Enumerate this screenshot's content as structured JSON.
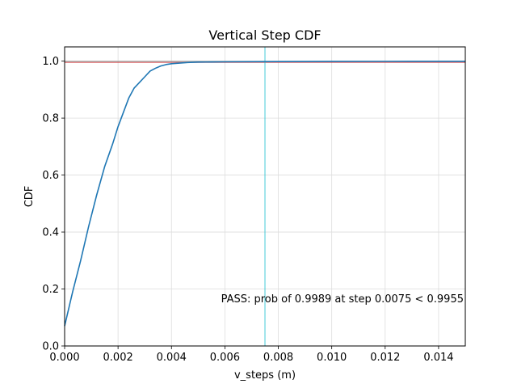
{
  "chart_data": {
    "type": "line",
    "title": "Vertical Step CDF",
    "xlabel": "v_steps (m)",
    "ylabel": "CDF",
    "xlim": [
      0.0,
      0.015
    ],
    "ylim": [
      0.0,
      1.05
    ],
    "xticks": [
      0.0,
      0.002,
      0.004,
      0.006,
      0.008,
      0.01,
      0.012,
      0.014
    ],
    "xtick_labels": [
      "0.000",
      "0.002",
      "0.004",
      "0.006",
      "0.008",
      "0.010",
      "0.012",
      "0.014"
    ],
    "yticks": [
      0.0,
      0.2,
      0.4,
      0.6,
      0.8,
      1.0
    ],
    "ytick_labels": [
      "0.0",
      "0.2",
      "0.4",
      "0.6",
      "0.8",
      "1.0"
    ],
    "grid": true,
    "series": [
      {
        "color": "#1f77b4",
        "x": [
          0.0,
          0.0003,
          0.0006,
          0.0009,
          0.0012,
          0.0015,
          0.0018,
          0.002,
          0.0022,
          0.0024,
          0.0026,
          0.0028,
          0.003,
          0.0032,
          0.0034,
          0.0036,
          0.0038,
          0.004,
          0.0043,
          0.0046,
          0.005,
          0.0055,
          0.006,
          0.007,
          0.008,
          0.01,
          0.012,
          0.015
        ],
        "y": [
          0.07,
          0.19,
          0.3,
          0.42,
          0.53,
          0.63,
          0.71,
          0.77,
          0.82,
          0.87,
          0.905,
          0.925,
          0.945,
          0.965,
          0.975,
          0.983,
          0.988,
          0.991,
          0.993,
          0.995,
          0.9965,
          0.997,
          0.9975,
          0.998,
          0.9985,
          0.999,
          0.9993,
          0.9995
        ]
      }
    ],
    "hlines": [
      {
        "y": 0.9955,
        "color": "#d62728"
      },
      {
        "y": 0.9989,
        "color": "#7f7f7f"
      }
    ],
    "vlines": [
      {
        "x": 0.0075,
        "color": "#17becf"
      }
    ],
    "annotation": {
      "text": "PASS: prob of 0.9989 at step 0.0075 < 0.9955",
      "color": "#008000"
    }
  }
}
